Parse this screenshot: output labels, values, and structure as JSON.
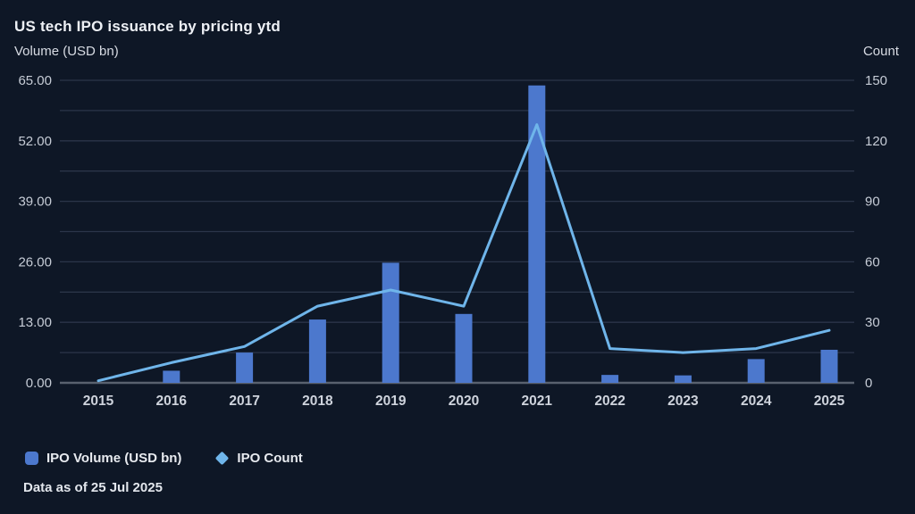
{
  "header": {
    "title": "US tech IPO issuance by pricing ytd"
  },
  "chart_data": {
    "type": "bar",
    "subtype": "dual-axis bar + line combo",
    "title": "US tech IPO issuance by pricing ytd",
    "categories": [
      "2015",
      "2016",
      "2017",
      "2018",
      "2019",
      "2020",
      "2021",
      "2022",
      "2023",
      "2024",
      "2025"
    ],
    "series": [
      {
        "name": "IPO Volume (USD bn)",
        "type": "bar",
        "axis": "left",
        "color": "#4c78cd",
        "values": [
          0,
          2.6,
          6.5,
          13.6,
          25.8,
          14.8,
          63.9,
          1.7,
          1.6,
          5.1,
          7.1
        ]
      },
      {
        "name": "IPO Count",
        "type": "line",
        "axis": "right",
        "color": "#6fb5ea",
        "values": [
          1,
          10,
          18,
          38,
          46,
          38,
          128,
          17,
          15,
          17,
          26
        ]
      }
    ],
    "left_axis": {
      "label": "Volume (USD bn)",
      "min": 0,
      "max": 65,
      "tick_labels": [
        "65.00",
        "52.00",
        "39.00",
        "26.00",
        "13.00",
        "0.00"
      ],
      "tick_values": [
        65,
        52,
        39,
        26,
        13,
        0
      ]
    },
    "right_axis": {
      "label": "Count",
      "min": 0,
      "max": 150,
      "tick_labels": [
        "150",
        "120",
        "90",
        "60",
        "30",
        "0"
      ],
      "tick_values": [
        150,
        120,
        90,
        60,
        30,
        0
      ]
    },
    "grid": {
      "horizontal": true,
      "minor_between_majors": true,
      "vertical": false
    },
    "legend_position": "bottom-left"
  },
  "legend": {
    "items": [
      {
        "label": "IPO Volume (USD bn)",
        "marker": "rounded-square",
        "color": "#4c78cd"
      },
      {
        "label": "IPO Count",
        "marker": "diamond",
        "color": "#6fb5ea"
      }
    ]
  },
  "footnote": "Data as of 25 Jul 2025",
  "colors": {
    "background": "#0e1726",
    "bar": "#4c78cd",
    "line": "#6fb5ea",
    "gridline": "#2b3549",
    "axis_line": "#59616f",
    "tick_text": "#c6ccd6",
    "title_text": "#edf0f5"
  }
}
